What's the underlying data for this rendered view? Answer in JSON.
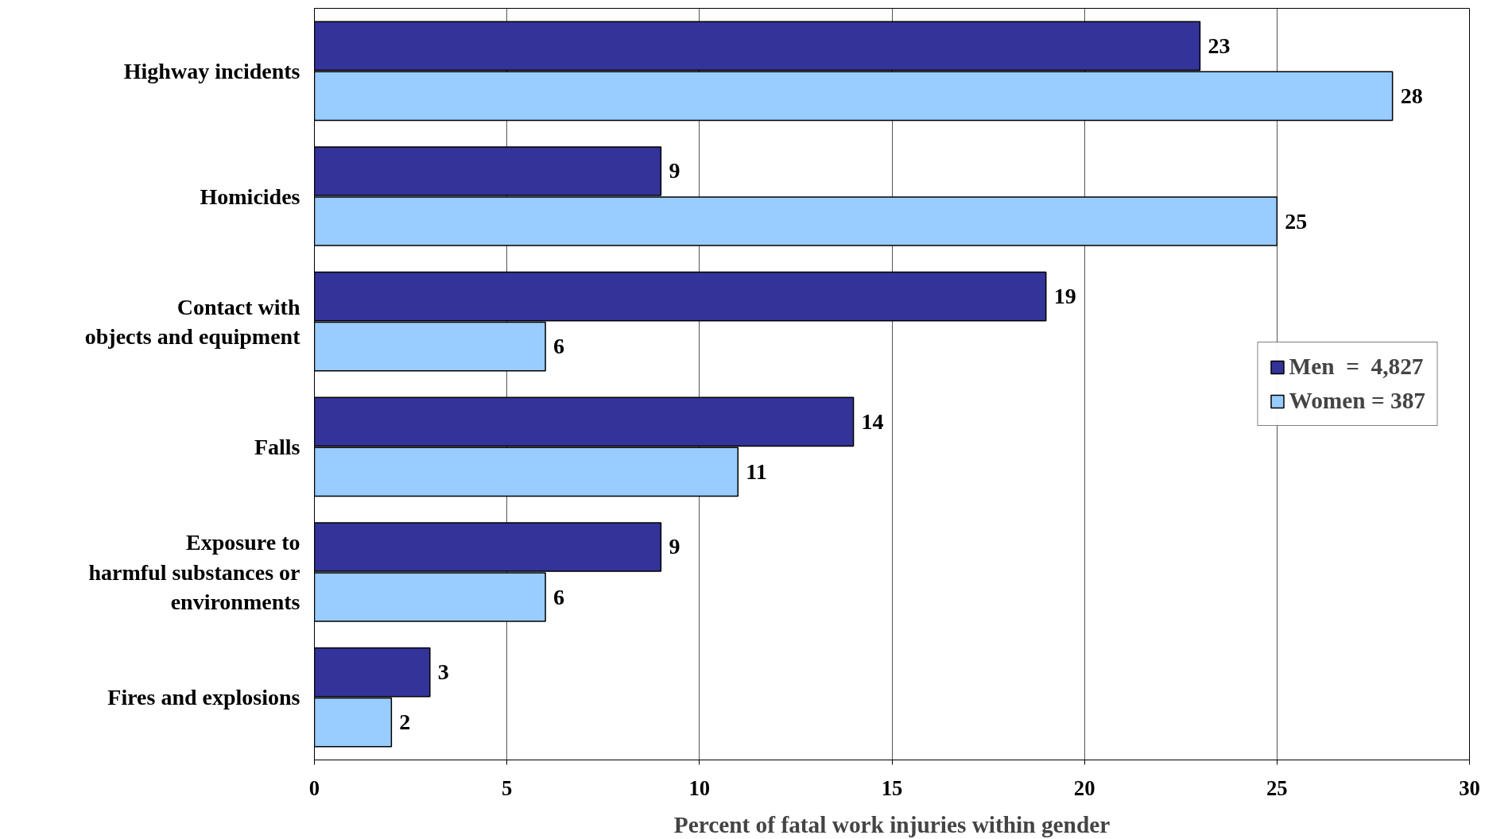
{
  "chart_data": {
    "type": "bar",
    "orientation": "horizontal",
    "xlabel": "Percent of fatal work injuries within gender",
    "categories": [
      "Highway incidents",
      "Homicides",
      "Contact with\nobjects and equipment",
      "Falls",
      "Exposure to\nharmful substances or\nenvironments",
      "Fires and explosions"
    ],
    "series": [
      {
        "name": "Men  =  4,827",
        "color": "#333399",
        "values": [
          23,
          9,
          19,
          14,
          9,
          3
        ]
      },
      {
        "name": "Women = 387",
        "color": "#99ccff",
        "values": [
          28,
          25,
          6,
          11,
          6,
          2
        ]
      }
    ],
    "xlim": [
      0,
      30
    ],
    "xticks": [
      0,
      5,
      10,
      15,
      20,
      25,
      30
    ],
    "grid": "x",
    "legend": "right",
    "data_labels": true
  }
}
